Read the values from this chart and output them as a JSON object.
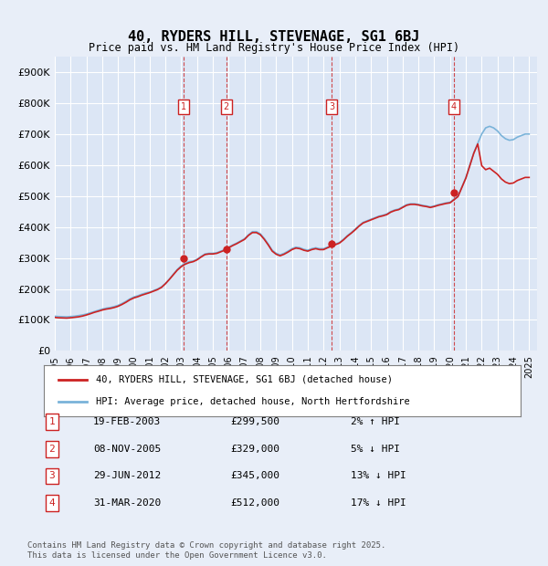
{
  "title": "40, RYDERS HILL, STEVENAGE, SG1 6BJ",
  "subtitle": "Price paid vs. HM Land Registry's House Price Index (HPI)",
  "ylabel_ticks": [
    "£0",
    "£100K",
    "£200K",
    "£300K",
    "£400K",
    "£500K",
    "£600K",
    "£700K",
    "£800K",
    "£900K"
  ],
  "ytick_values": [
    0,
    100000,
    200000,
    300000,
    400000,
    500000,
    600000,
    700000,
    800000,
    900000
  ],
  "ylim": [
    0,
    950000
  ],
  "xlim_start": 1995.0,
  "xlim_end": 2025.5,
  "bg_color": "#e8eef8",
  "plot_bg_color": "#dce6f5",
  "grid_color": "#ffffff",
  "legend_label_red": "40, RYDERS HILL, STEVENAGE, SG1 6BJ (detached house)",
  "legend_label_blue": "HPI: Average price, detached house, North Hertfordshire",
  "transactions": [
    {
      "num": 1,
      "date": "19-FEB-2003",
      "price": 299500,
      "pct": "2%",
      "dir": "↑",
      "year": 2003.13
    },
    {
      "num": 2,
      "date": "08-NOV-2005",
      "price": 329000,
      "pct": "5%",
      "dir": "↓",
      "year": 2005.85
    },
    {
      "num": 3,
      "date": "29-JUN-2012",
      "price": 345000,
      "pct": "13%",
      "dir": "↓",
      "year": 2012.5
    },
    {
      "num": 4,
      "date": "31-MAR-2020",
      "price": 512000,
      "pct": "17%",
      "dir": "↓",
      "year": 2020.25
    }
  ],
  "footer": "Contains HM Land Registry data © Crown copyright and database right 2025.\nThis data is licensed under the Open Government Licence v3.0.",
  "hpi_data_x": [
    1995.0,
    1995.25,
    1995.5,
    1995.75,
    1996.0,
    1996.25,
    1996.5,
    1996.75,
    1997.0,
    1997.25,
    1997.5,
    1997.75,
    1998.0,
    1998.25,
    1998.5,
    1998.75,
    1999.0,
    1999.25,
    1999.5,
    1999.75,
    2000.0,
    2000.25,
    2000.5,
    2000.75,
    2001.0,
    2001.25,
    2001.5,
    2001.75,
    2002.0,
    2002.25,
    2002.5,
    2002.75,
    2003.0,
    2003.25,
    2003.5,
    2003.75,
    2004.0,
    2004.25,
    2004.5,
    2004.75,
    2005.0,
    2005.25,
    2005.5,
    2005.75,
    2006.0,
    2006.25,
    2006.5,
    2006.75,
    2007.0,
    2007.25,
    2007.5,
    2007.75,
    2008.0,
    2008.25,
    2008.5,
    2008.75,
    2009.0,
    2009.25,
    2009.5,
    2009.75,
    2010.0,
    2010.25,
    2010.5,
    2010.75,
    2011.0,
    2011.25,
    2011.5,
    2011.75,
    2012.0,
    2012.25,
    2012.5,
    2012.75,
    2013.0,
    2013.25,
    2013.5,
    2013.75,
    2014.0,
    2014.25,
    2014.5,
    2014.75,
    2015.0,
    2015.25,
    2015.5,
    2015.75,
    2016.0,
    2016.25,
    2016.5,
    2016.75,
    2017.0,
    2017.25,
    2017.5,
    2017.75,
    2018.0,
    2018.25,
    2018.5,
    2018.75,
    2019.0,
    2019.25,
    2019.5,
    2019.75,
    2020.0,
    2020.25,
    2020.5,
    2020.75,
    2021.0,
    2021.25,
    2021.5,
    2021.75,
    2022.0,
    2022.25,
    2022.5,
    2022.75,
    2023.0,
    2023.25,
    2023.5,
    2023.75,
    2024.0,
    2024.25,
    2024.5,
    2024.75,
    2025.0
  ],
  "hpi_data_y": [
    112000,
    111000,
    110500,
    110000,
    111000,
    112000,
    114000,
    116000,
    119000,
    123000,
    127000,
    131000,
    135000,
    138000,
    140000,
    143000,
    147000,
    153000,
    160000,
    168000,
    174000,
    178000,
    183000,
    187000,
    190000,
    195000,
    200000,
    207000,
    218000,
    232000,
    248000,
    263000,
    275000,
    283000,
    288000,
    290000,
    296000,
    305000,
    313000,
    315000,
    315000,
    317000,
    322000,
    327000,
    335000,
    342000,
    348000,
    355000,
    362000,
    375000,
    385000,
    385000,
    378000,
    363000,
    345000,
    325000,
    315000,
    310000,
    315000,
    322000,
    330000,
    335000,
    333000,
    328000,
    325000,
    330000,
    333000,
    330000,
    330000,
    335000,
    340000,
    345000,
    350000,
    360000,
    372000,
    382000,
    393000,
    405000,
    415000,
    420000,
    425000,
    430000,
    435000,
    438000,
    442000,
    450000,
    455000,
    458000,
    465000,
    472000,
    475000,
    475000,
    473000,
    470000,
    468000,
    465000,
    468000,
    472000,
    475000,
    478000,
    480000,
    490000,
    500000,
    530000,
    560000,
    600000,
    640000,
    670000,
    700000,
    720000,
    725000,
    720000,
    710000,
    695000,
    685000,
    680000,
    682000,
    690000,
    695000,
    700000,
    700000
  ],
  "price_data_x": [
    1995.0,
    1995.25,
    1995.5,
    1995.75,
    1996.0,
    1996.25,
    1996.5,
    1996.75,
    1997.0,
    1997.25,
    1997.5,
    1997.75,
    1998.0,
    1998.25,
    1998.5,
    1998.75,
    1999.0,
    1999.25,
    1999.5,
    1999.75,
    2000.0,
    2000.25,
    2000.5,
    2000.75,
    2001.0,
    2001.25,
    2001.5,
    2001.75,
    2002.0,
    2002.25,
    2002.5,
    2002.75,
    2003.0,
    2003.25,
    2003.5,
    2003.75,
    2004.0,
    2004.25,
    2004.5,
    2004.75,
    2005.0,
    2005.25,
    2005.5,
    2005.75,
    2006.0,
    2006.25,
    2006.5,
    2006.75,
    2007.0,
    2007.25,
    2007.5,
    2007.75,
    2008.0,
    2008.25,
    2008.5,
    2008.75,
    2009.0,
    2009.25,
    2009.5,
    2009.75,
    2010.0,
    2010.25,
    2010.5,
    2010.75,
    2011.0,
    2011.25,
    2011.5,
    2011.75,
    2012.0,
    2012.25,
    2012.5,
    2012.75,
    2013.0,
    2013.25,
    2013.5,
    2013.75,
    2014.0,
    2014.25,
    2014.5,
    2014.75,
    2015.0,
    2015.25,
    2015.5,
    2015.75,
    2016.0,
    2016.25,
    2016.5,
    2016.75,
    2017.0,
    2017.25,
    2017.5,
    2017.75,
    2018.0,
    2018.25,
    2018.5,
    2018.75,
    2019.0,
    2019.25,
    2019.5,
    2019.75,
    2020.0,
    2020.25,
    2020.5,
    2020.75,
    2021.0,
    2021.25,
    2021.5,
    2021.75,
    2022.0,
    2022.25,
    2022.5,
    2022.75,
    2023.0,
    2023.25,
    2023.5,
    2023.75,
    2024.0,
    2024.25,
    2024.5,
    2024.75,
    2025.0
  ],
  "price_data_y": [
    108000,
    107000,
    106500,
    106000,
    107000,
    108500,
    110000,
    112500,
    116000,
    120000,
    124500,
    128000,
    132000,
    135000,
    137000,
    140000,
    144000,
    150000,
    157000,
    165000,
    171000,
    175000,
    180000,
    184000,
    188000,
    193000,
    198000,
    205000,
    217000,
    231000,
    246000,
    261000,
    272000,
    280000,
    285000,
    288000,
    294000,
    303000,
    311000,
    313000,
    313000,
    315000,
    320000,
    325000,
    333000,
    340000,
    346000,
    353000,
    360000,
    373000,
    382000,
    382000,
    375000,
    360000,
    342000,
    322000,
    312000,
    307000,
    312000,
    319000,
    327000,
    332000,
    330000,
    325000,
    322000,
    327000,
    330000,
    327000,
    327000,
    333000,
    338000,
    343000,
    348000,
    358000,
    370000,
    380000,
    391000,
    403000,
    413000,
    418000,
    423000,
    428000,
    433000,
    436000,
    440000,
    448000,
    453000,
    456000,
    463000,
    470000,
    473000,
    473000,
    471000,
    468000,
    466000,
    463000,
    466000,
    470000,
    473000,
    476000,
    478000,
    488000,
    498000,
    528000,
    558000,
    598000,
    638000,
    668000,
    598000,
    585000,
    590000,
    580000,
    570000,
    555000,
    545000,
    540000,
    542000,
    550000,
    555000,
    560000,
    560000
  ]
}
